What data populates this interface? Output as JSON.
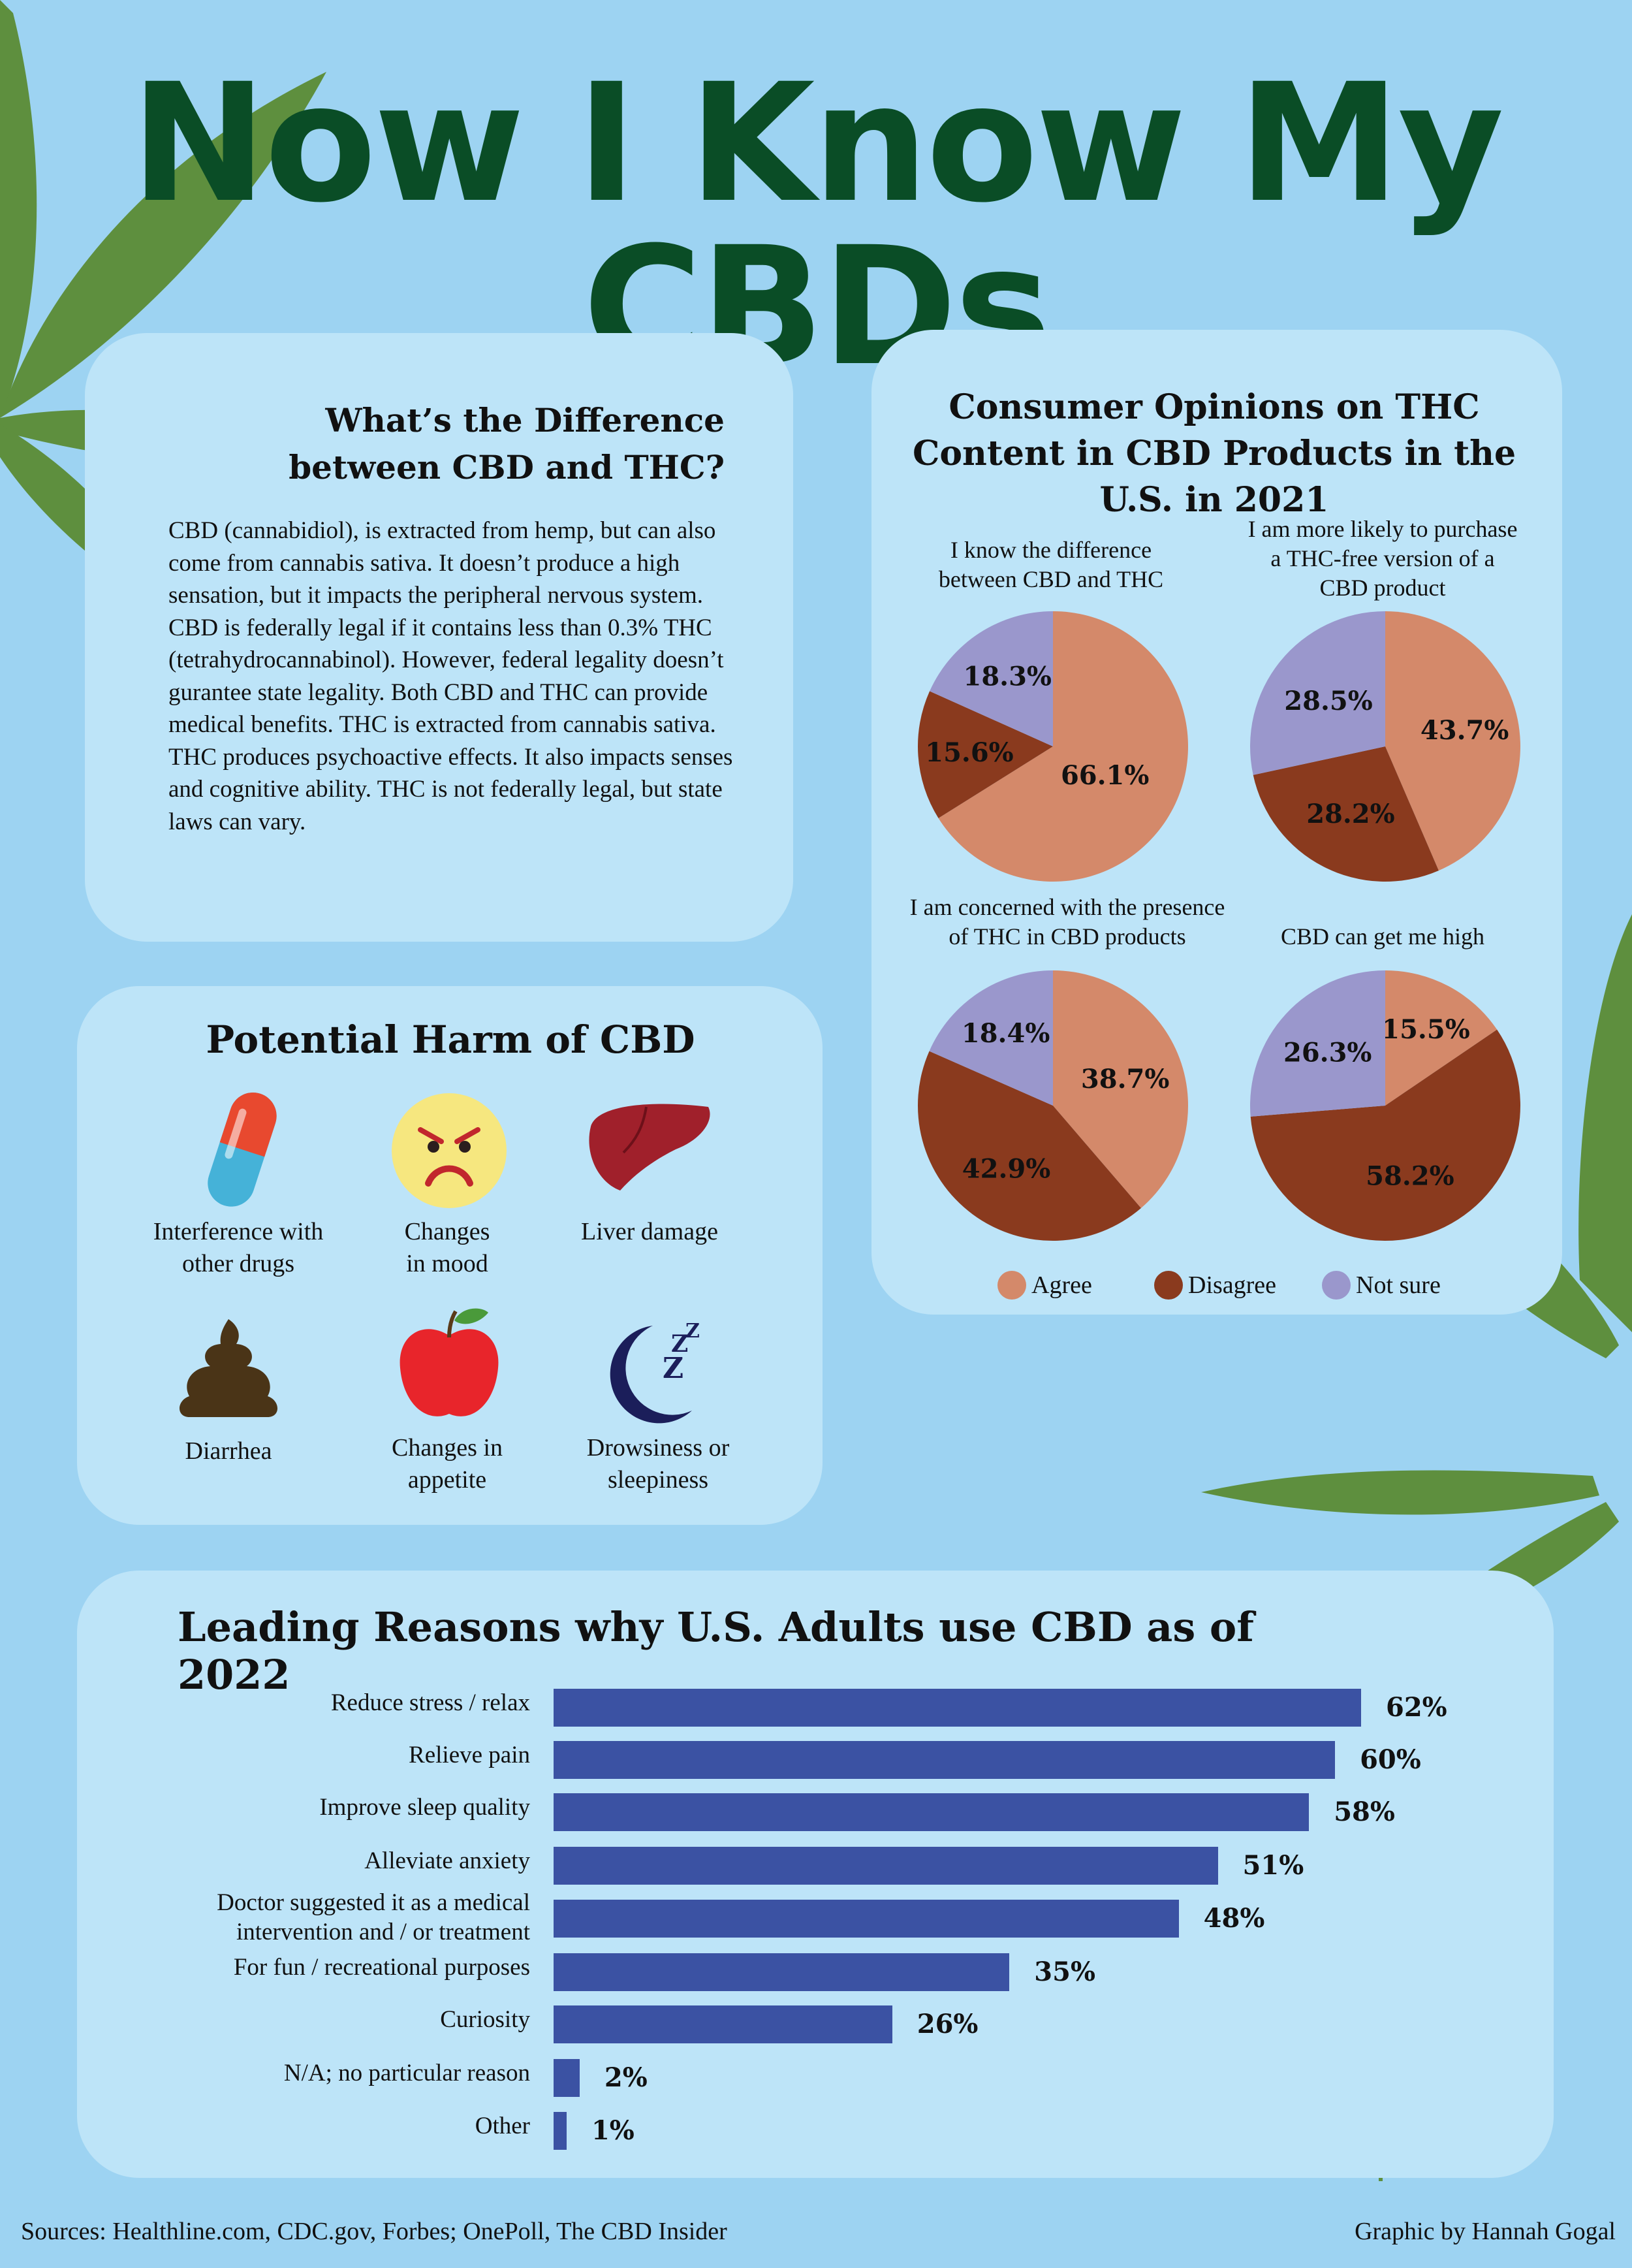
{
  "title": "Now I Know My CBDs",
  "difference": {
    "title": "What’s the Difference between CBD and THC?",
    "body": "CBD (cannabidiol), is extracted from hemp, but can also come from cannabis sativa. It doesn’t produce a high sensation, but it impacts the peripheral nervous system. CBD is federally legal if it contains less than 0.3% THC (tetrahydrocannabinol). However, federal legality doesn’t gurantee state legality. Both CBD and THC can provide medical benefits. THC is extracted from cannabis sativa. THC produces psychoactive effects. It also impacts senses and cognitive ability. THC is not federally legal, but state laws can vary."
  },
  "harm": {
    "title": "Potential Harm of CBD",
    "items": [
      {
        "label": "Interference with\nother drugs",
        "icon": "pill-icon"
      },
      {
        "label": "Changes\nin mood",
        "icon": "angry-face-icon"
      },
      {
        "label": "Liver damage",
        "icon": "liver-icon"
      },
      {
        "label": "Diarrhea",
        "icon": "poop-icon"
      },
      {
        "label": "Changes in\nappetite",
        "icon": "apple-icon"
      },
      {
        "label": "Drowsiness or\nsleepiness",
        "icon": "moon-sleep-icon"
      }
    ]
  },
  "colors": {
    "agree": "#d4896a",
    "disagree": "#8a3a1e",
    "not_sure": "#9a97cc",
    "bar": "#3b52a3",
    "title_green": "#0a4d26",
    "leaf_green": "#5e8f3e"
  },
  "chart_data": [
    {
      "type": "pie",
      "title": "Consumer Opinions on THC Content in CBD Products in the U.S. in 2021",
      "legend": [
        "Agree",
        "Disagree",
        "Not sure"
      ],
      "legend_position": "bottom",
      "pies": [
        {
          "caption": "I know the difference\nbetween CBD and THC",
          "slices": [
            {
              "label": "Agree",
              "value": 66.1,
              "text": "66.1%"
            },
            {
              "label": "Disagree",
              "value": 15.6,
              "text": "15.6%"
            },
            {
              "label": "Not sure",
              "value": 18.3,
              "text": "18.3%"
            }
          ]
        },
        {
          "caption": "I am more likely to purchase\na THC-free version of a\nCBD product",
          "slices": [
            {
              "label": "Agree",
              "value": 43.7,
              "text": "43.7%"
            },
            {
              "label": "Disagree",
              "value": 28.2,
              "text": "28.2%"
            },
            {
              "label": "Not sure",
              "value": 28.5,
              "text": "28.5%"
            }
          ]
        },
        {
          "caption": "I am concerned with the presence\nof THC in CBD products",
          "slices": [
            {
              "label": "Agree",
              "value": 38.7,
              "text": "38.7%"
            },
            {
              "label": "Disagree",
              "value": 42.9,
              "text": "42.9%"
            },
            {
              "label": "Not sure",
              "value": 18.4,
              "text": "18.4%"
            }
          ]
        },
        {
          "caption": "CBD can get me high",
          "slices": [
            {
              "label": "Agree",
              "value": 15.5,
              "text": "15.5%"
            },
            {
              "label": "Disagree",
              "value": 58.2,
              "text": "58.2%"
            },
            {
              "label": "Not sure",
              "value": 26.3,
              "text": "26.3%"
            }
          ]
        }
      ]
    },
    {
      "type": "bar",
      "orientation": "horizontal",
      "title": "Leading Reasons why U.S. Adults use CBD as of 2022",
      "categories": [
        "Reduce stress / relax",
        "Relieve pain",
        "Improve sleep quality",
        "Alleviate anxiety",
        "Doctor suggested it as a medical\nintervention and / or treatment",
        "For fun / recreational purposes",
        "Curiosity",
        "N/A; no particular reason",
        "Other"
      ],
      "values": [
        62,
        60,
        58,
        51,
        48,
        35,
        26,
        2,
        1
      ],
      "value_labels": [
        "62%",
        "60%",
        "58%",
        "51%",
        "48%",
        "35%",
        "26%",
        "2%",
        "1%"
      ],
      "xlim": [
        0,
        62
      ]
    }
  ],
  "footer": {
    "sources": "Sources: Healthline.com, CDC.gov, Forbes; OnePoll, The CBD Insider",
    "credit": "Graphic by Hannah Gogal"
  }
}
